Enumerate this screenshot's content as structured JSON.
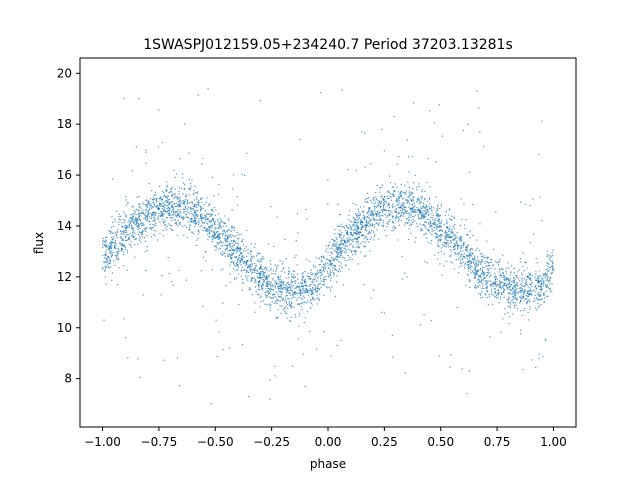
{
  "chart_data": {
    "type": "scatter",
    "title": "1SWASPJ012159.05+234240.7 Period 37203.13281s",
    "xlabel": "phase",
    "ylabel": "flux",
    "xlim": [
      -1.1,
      1.1
    ],
    "ylim": [
      6.1,
      20.6
    ],
    "xticks": [
      -1.0,
      -0.75,
      -0.5,
      -0.25,
      0.0,
      0.25,
      0.5,
      0.75,
      1.0
    ],
    "xtick_labels": [
      "−1.00",
      "−0.75",
      "−0.50",
      "−0.25",
      "0.00",
      "0.25",
      "0.50",
      "0.75",
      "1.00"
    ],
    "yticks": [
      8,
      10,
      12,
      14,
      16,
      18,
      20
    ],
    "ytick_labels": [
      "8",
      "10",
      "12",
      "14",
      "16",
      "18",
      "20"
    ],
    "grid": false,
    "legend": "none",
    "marker_color": "#1f77b4",
    "series": [
      {
        "phase": [
          -1.0,
          -0.95,
          -0.9,
          -0.85,
          -0.8,
          -0.75,
          -0.7,
          -0.65,
          -0.6,
          -0.55,
          -0.5,
          -0.45,
          -0.4,
          -0.35,
          -0.3,
          -0.25,
          -0.2,
          -0.15,
          -0.1,
          -0.05,
          0.0,
          0.05,
          0.1,
          0.15,
          0.2,
          0.25,
          0.3,
          0.35,
          0.4,
          0.45,
          0.5,
          0.55,
          0.6,
          0.65,
          0.7,
          0.75,
          0.8,
          0.85,
          0.9,
          0.95,
          1.0
        ],
        "flux_median": [
          12.7,
          13.2,
          13.7,
          14.1,
          14.4,
          14.6,
          14.75,
          14.75,
          14.6,
          14.3,
          13.9,
          13.4,
          12.9,
          12.4,
          12.0,
          11.7,
          11.5,
          11.45,
          11.5,
          11.7,
          12.5,
          13.1,
          13.6,
          14.05,
          14.35,
          14.6,
          14.75,
          14.75,
          14.6,
          14.3,
          13.9,
          13.4,
          12.9,
          12.4,
          12.0,
          11.7,
          11.5,
          11.45,
          11.5,
          11.7,
          12.5
        ],
        "flux_scatter": 0.45
      }
    ]
  }
}
